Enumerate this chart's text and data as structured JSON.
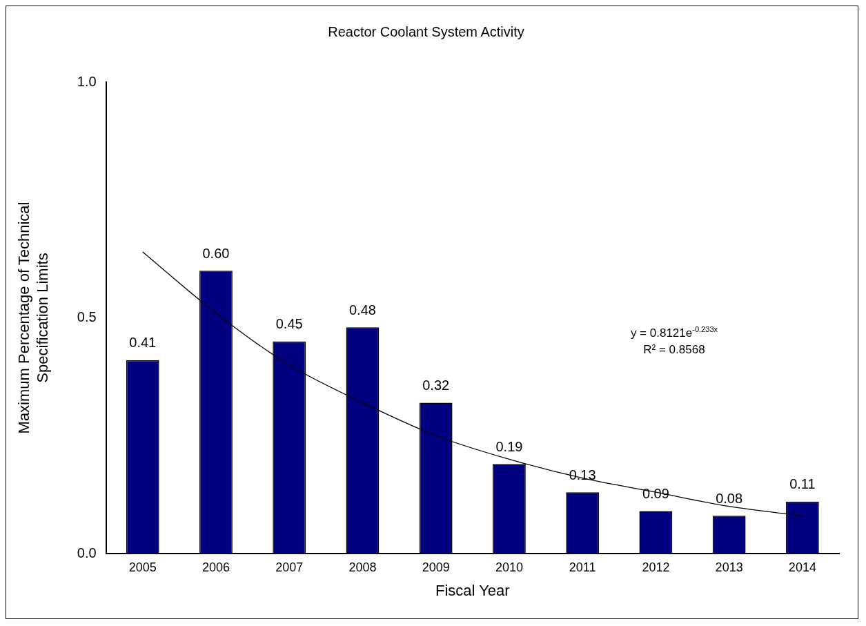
{
  "chart_data": {
    "type": "bar",
    "title": "Reactor Coolant System Activity",
    "xlabel": "Fiscal Year",
    "ylabel": "Maximum Percentage of Technical Specification Limits",
    "categories": [
      "2005",
      "2006",
      "2007",
      "2008",
      "2009",
      "2010",
      "2011",
      "2012",
      "2013",
      "2014"
    ],
    "series": [
      {
        "color": "#000080",
        "values": [
          0.41,
          0.6,
          0.45,
          0.48,
          0.32,
          0.19,
          0.13,
          0.09,
          0.08,
          0.11
        ],
        "value_labels": [
          "0.41",
          "0.60",
          "0.45",
          "0.48",
          "0.32",
          "0.19",
          "0.13",
          "0.09",
          "0.08",
          "0.11"
        ]
      },
      {
        "type": "line",
        "color": "#000000",
        "marker": "none",
        "values": [
          0.64,
          0.51,
          0.4,
          0.32,
          0.25,
          0.2,
          0.16,
          0.13,
          0.1,
          0.08
        ]
      }
    ],
    "ylim": [
      0,
      1
    ],
    "yticks": [
      {
        "value": 0,
        "label": "0.0"
      },
      {
        "value": 0.5,
        "label": "0.5"
      },
      {
        "value": 1,
        "label": "1.0"
      }
    ],
    "grid": false,
    "legend": false,
    "annotations": [
      "y = 0.8121e$^{-0.233x}$",
      "R² = 0.8568"
    ]
  }
}
